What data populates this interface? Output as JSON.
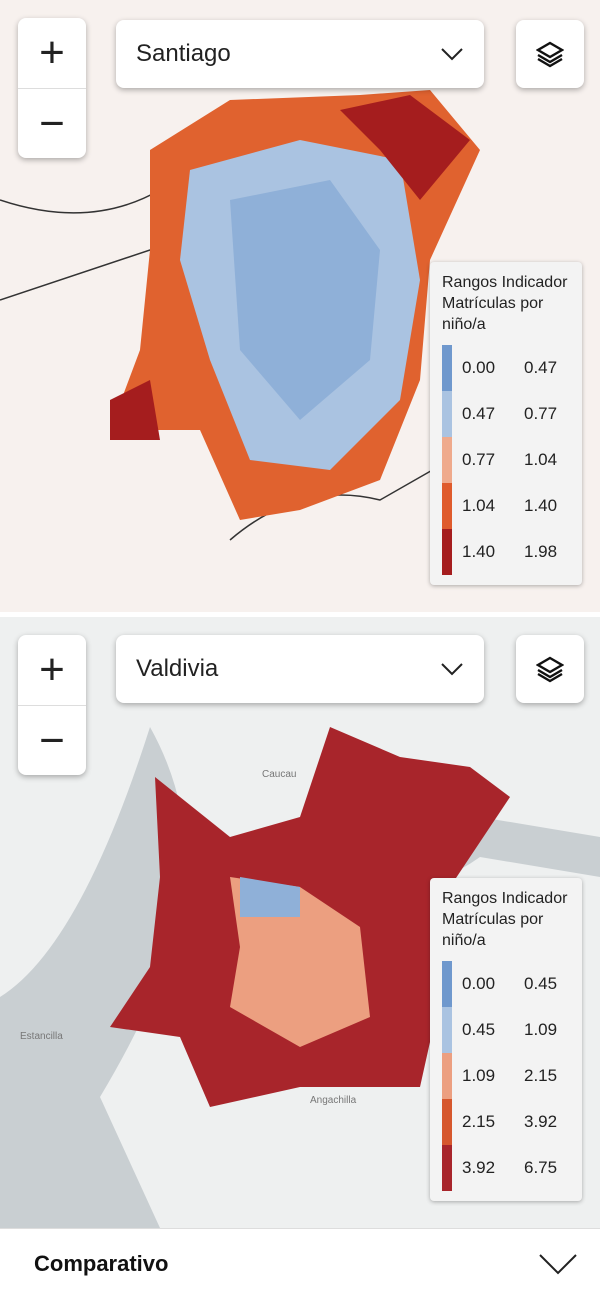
{
  "maps": [
    {
      "city": "Santiago",
      "legend": {
        "title": [
          "Rangos Indicador",
          "Matrículas por",
          "niño/a"
        ],
        "ranges": [
          {
            "from": "0.00",
            "to": "0.47",
            "color": "#6f98cd"
          },
          {
            "from": "0.47",
            "to": "0.77",
            "color": "#aac3e1"
          },
          {
            "from": "0.77",
            "to": "1.04",
            "color": "#efaa8c"
          },
          {
            "from": "1.04",
            "to": "1.40",
            "color": "#df5b2c"
          },
          {
            "from": "1.40",
            "to": "1.98",
            "color": "#a51d1e"
          }
        ]
      },
      "place_labels": []
    },
    {
      "city": "Valdivia",
      "legend": {
        "title": [
          "Rangos Indicador",
          "Matrículas por",
          "niño/a"
        ],
        "ranges": [
          {
            "from": "0.00",
            "to": "0.45",
            "color": "#6f98cd"
          },
          {
            "from": "0.45",
            "to": "1.09",
            "color": "#aac3e1"
          },
          {
            "from": "1.09",
            "to": "2.15",
            "color": "#ec9f80"
          },
          {
            "from": "2.15",
            "to": "3.92",
            "color": "#d6572d"
          },
          {
            "from": "3.92",
            "to": "6.75",
            "color": "#a8252b"
          }
        ]
      },
      "place_labels": [
        "Caucau",
        "Estancilla",
        "Angachilla"
      ]
    }
  ],
  "footer": {
    "title": "Comparativo"
  }
}
